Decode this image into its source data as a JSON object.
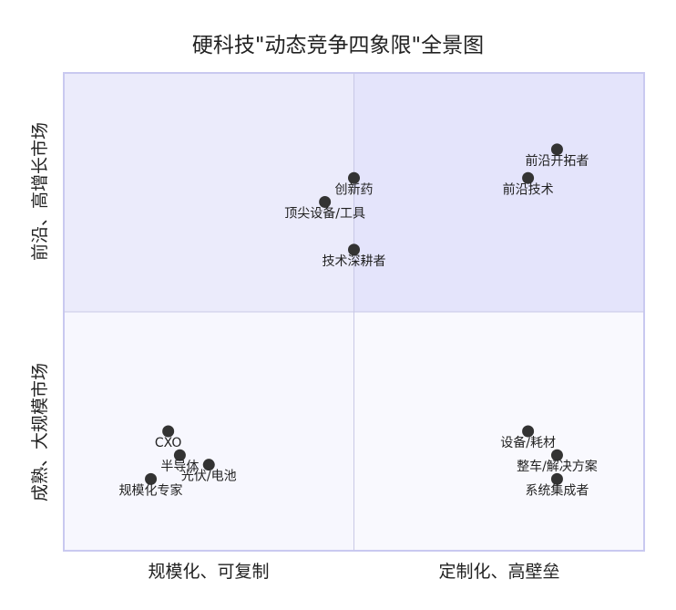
{
  "chart_data": {
    "type": "scatter",
    "title": "硬科技\"动态竞争四象限\"全景图",
    "x_axis": {
      "left_label": "规模化、可复制",
      "right_label": "定制化、高壁垒",
      "range": [
        0,
        10
      ]
    },
    "y_axis": {
      "top_label": "前沿、高增长市场",
      "bottom_label": "成熟、大规模市场",
      "range": [
        0,
        10
      ]
    },
    "quadrant_colors": {
      "top_left": "#ebebfb",
      "top_right": "#e4e4fb",
      "bottom_left": "#f7f7fe",
      "bottom_right": "#f9f9fe",
      "border": "#c9c9f0",
      "divider": "#c8c8e6"
    },
    "point_color": "#333333",
    "grid": false,
    "legend": "none",
    "points": [
      {
        "label": "前沿开拓者",
        "x": 8.5,
        "y": 8.4
      },
      {
        "label": "前沿技术",
        "x": 8.0,
        "y": 7.8
      },
      {
        "label": "创新药",
        "x": 5.0,
        "y": 7.8
      },
      {
        "label": "顶尖设备/工具",
        "x": 4.5,
        "y": 7.3
      },
      {
        "label": "技术深耕者",
        "x": 5.0,
        "y": 6.3
      },
      {
        "label": "CXO",
        "x": 1.8,
        "y": 2.5
      },
      {
        "label": "半导体",
        "x": 2.0,
        "y": 2.0
      },
      {
        "label": "光伏/电池",
        "x": 2.5,
        "y": 1.8
      },
      {
        "label": "规模化专家",
        "x": 1.5,
        "y": 1.5
      },
      {
        "label": "设备/耗材",
        "x": 8.0,
        "y": 2.5
      },
      {
        "label": "整车/解决方案",
        "x": 8.5,
        "y": 2.0
      },
      {
        "label": "系统集成者",
        "x": 8.5,
        "y": 1.5
      }
    ]
  }
}
